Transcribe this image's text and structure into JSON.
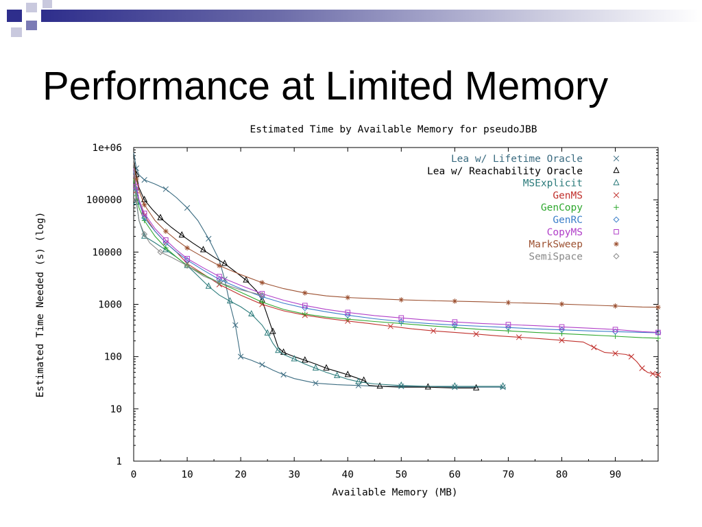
{
  "slide": {
    "title": "Performance at Limited Memory"
  },
  "colors": {
    "decoration_dark": "#2e2e8c",
    "decoration_mid": "#7b7bb5",
    "decoration_light": "#c9c9de"
  },
  "chart_data": {
    "type": "line",
    "title": "Estimated Time by Available Memory for pseudoJBB",
    "xlabel": "Available Memory (MB)",
    "ylabel": "Estimated Time Needed (s) (log)",
    "xlim": [
      0,
      98
    ],
    "ylim": [
      1,
      1000000
    ],
    "y_scale": "log",
    "grid": false,
    "legend_position": "top-right",
    "x_ticks": [
      0,
      10,
      20,
      30,
      40,
      50,
      60,
      70,
      80,
      90
    ],
    "x_tick_labels": [
      "0",
      "10",
      "20",
      "30",
      "40",
      "50",
      "60",
      "70",
      "80",
      "90"
    ],
    "y_ticks": [
      1,
      10,
      100,
      1000,
      10000,
      100000,
      1000000
    ],
    "y_tick_labels": [
      "1",
      "10",
      "100",
      "1000",
      "10000",
      "100000",
      "1e+06"
    ],
    "series": [
      {
        "name": "Lea w/ Lifetime Oracle",
        "color": "#3a6b80",
        "marker": "x",
        "x": [
          0,
          0.5,
          1,
          2,
          4,
          6,
          8,
          10,
          12,
          14,
          16,
          17,
          18,
          19,
          19.5,
          20,
          22,
          24,
          26,
          28,
          30,
          34,
          38,
          42,
          46,
          50,
          55,
          60,
          65,
          69
        ],
        "y": [
          800000,
          400000,
          300000,
          240000,
          200000,
          160000,
          110000,
          70000,
          40000,
          18000,
          7000,
          3000,
          1000,
          400,
          200,
          100,
          85,
          70,
          55,
          45,
          38,
          31,
          29,
          28,
          27,
          27,
          27,
          26,
          26,
          26
        ]
      },
      {
        "name": "Lea w/ Reachability Oracle",
        "color": "#000000",
        "marker": "triangle",
        "x": [
          0,
          0.5,
          1,
          2,
          3.5,
          5,
          7,
          9,
          11,
          13,
          15,
          17,
          19,
          21,
          23,
          24,
          25,
          26,
          27,
          28,
          30,
          32,
          34,
          36,
          38,
          40,
          42,
          43,
          44,
          46,
          50,
          55,
          60,
          64
        ],
        "y": [
          600000,
          300000,
          170000,
          100000,
          65000,
          45000,
          30000,
          21000,
          15000,
          11000,
          8000,
          6000,
          4200,
          2900,
          1800,
          1200,
          600,
          300,
          150,
          120,
          100,
          85,
          72,
          60,
          52,
          45,
          38,
          35,
          28,
          27,
          26,
          26,
          25,
          25
        ]
      },
      {
        "name": "MSExplicit",
        "color": "#2a7a7a",
        "marker": "triangle",
        "x": [
          0,
          0.5,
          1,
          2,
          4,
          6,
          8,
          10,
          12,
          14,
          16,
          18,
          20,
          22,
          24,
          25,
          26,
          27,
          28,
          30,
          32,
          34,
          36,
          38,
          40,
          42,
          45,
          50,
          55,
          60,
          65,
          69
        ],
        "y": [
          300000,
          90000,
          40000,
          20000,
          15000,
          11000,
          8000,
          5500,
          3500,
          2200,
          1500,
          1150,
          900,
          650,
          400,
          280,
          180,
          130,
          110,
          90,
          72,
          60,
          50,
          43,
          37,
          33,
          30,
          28,
          27,
          27,
          27,
          27
        ]
      },
      {
        "name": "GenMS",
        "color": "#c0302c",
        "marker": "x",
        "x": [
          0,
          0.5,
          1,
          2,
          4,
          6,
          8,
          10,
          13,
          16,
          20,
          24,
          28,
          32,
          36,
          40,
          44,
          48,
          52,
          56,
          60,
          64,
          68,
          72,
          76,
          80,
          84,
          86,
          88,
          90,
          92,
          93,
          94,
          95,
          96,
          97,
          98
        ],
        "y": [
          300000,
          150000,
          90000,
          50000,
          25000,
          15000,
          10000,
          6000,
          3800,
          2400,
          1500,
          1000,
          750,
          620,
          540,
          480,
          430,
          380,
          340,
          310,
          290,
          270,
          250,
          235,
          220,
          205,
          190,
          150,
          120,
          115,
          110,
          100,
          80,
          60,
          50,
          47,
          45
        ]
      },
      {
        "name": "GenCopy",
        "color": "#2fa82f",
        "marker": "plus",
        "x": [
          0,
          0.5,
          1,
          2,
          4,
          6,
          8,
          10,
          13,
          16,
          20,
          24,
          28,
          32,
          36,
          40,
          45,
          50,
          55,
          60,
          65,
          70,
          75,
          80,
          85,
          90,
          95,
          98
        ],
        "y": [
          250000,
          120000,
          70000,
          40000,
          20000,
          12000,
          8000,
          5500,
          3700,
          2600,
          1700,
          1100,
          800,
          650,
          570,
          520,
          470,
          430,
          390,
          360,
          330,
          310,
          290,
          275,
          260,
          245,
          230,
          225
        ]
      },
      {
        "name": "GenRC",
        "color": "#3a7ec8",
        "marker": "diamond",
        "x": [
          0,
          0.5,
          1,
          2,
          4,
          6,
          8,
          10,
          13,
          16,
          20,
          24,
          28,
          32,
          36,
          40,
          45,
          50,
          55,
          60,
          65,
          70,
          75,
          80,
          85,
          90,
          95,
          98
        ],
        "y": [
          350000,
          160000,
          90000,
          45000,
          25000,
          15000,
          10000,
          7000,
          4500,
          3000,
          2000,
          1400,
          1050,
          850,
          720,
          620,
          530,
          470,
          430,
          400,
          380,
          360,
          340,
          325,
          310,
          300,
          290,
          285
        ]
      },
      {
        "name": "CopyMS",
        "color": "#b03ec8",
        "marker": "square",
        "x": [
          0,
          0.5,
          1,
          2,
          4,
          6,
          8,
          10,
          13,
          16,
          20,
          24,
          28,
          32,
          36,
          40,
          45,
          50,
          55,
          60,
          65,
          70,
          75,
          80,
          85,
          90,
          95,
          98
        ],
        "y": [
          400000,
          180000,
          100000,
          55000,
          28000,
          17000,
          11000,
          7500,
          5000,
          3400,
          2300,
          1600,
          1200,
          950,
          800,
          700,
          610,
          550,
          500,
          460,
          430,
          410,
          390,
          370,
          350,
          330,
          300,
          290
        ]
      },
      {
        "name": "MarkSweep",
        "color": "#9c5030",
        "marker": "star",
        "x": [
          0,
          0.5,
          1,
          2,
          4,
          6,
          8,
          10,
          13,
          16,
          20,
          24,
          28,
          32,
          36,
          40,
          45,
          50,
          55,
          60,
          65,
          70,
          75,
          80,
          85,
          90,
          95,
          98
        ],
        "y": [
          500000,
          250000,
          150000,
          80000,
          40000,
          25000,
          17000,
          12000,
          8000,
          5500,
          3700,
          2600,
          2000,
          1650,
          1450,
          1350,
          1280,
          1220,
          1180,
          1150,
          1120,
          1080,
          1050,
          1010,
          970,
          930,
          890,
          880
        ]
      },
      {
        "name": "SemiSpace",
        "color": "#888888",
        "marker": "diamond",
        "x": [
          0,
          0.5,
          1,
          2,
          3,
          5,
          7,
          10,
          13,
          16,
          20,
          24
        ],
        "y": [
          600000,
          100000,
          40000,
          22000,
          15000,
          10000,
          8000,
          5500,
          3500,
          2600,
          1900,
          1500
        ]
      }
    ]
  }
}
